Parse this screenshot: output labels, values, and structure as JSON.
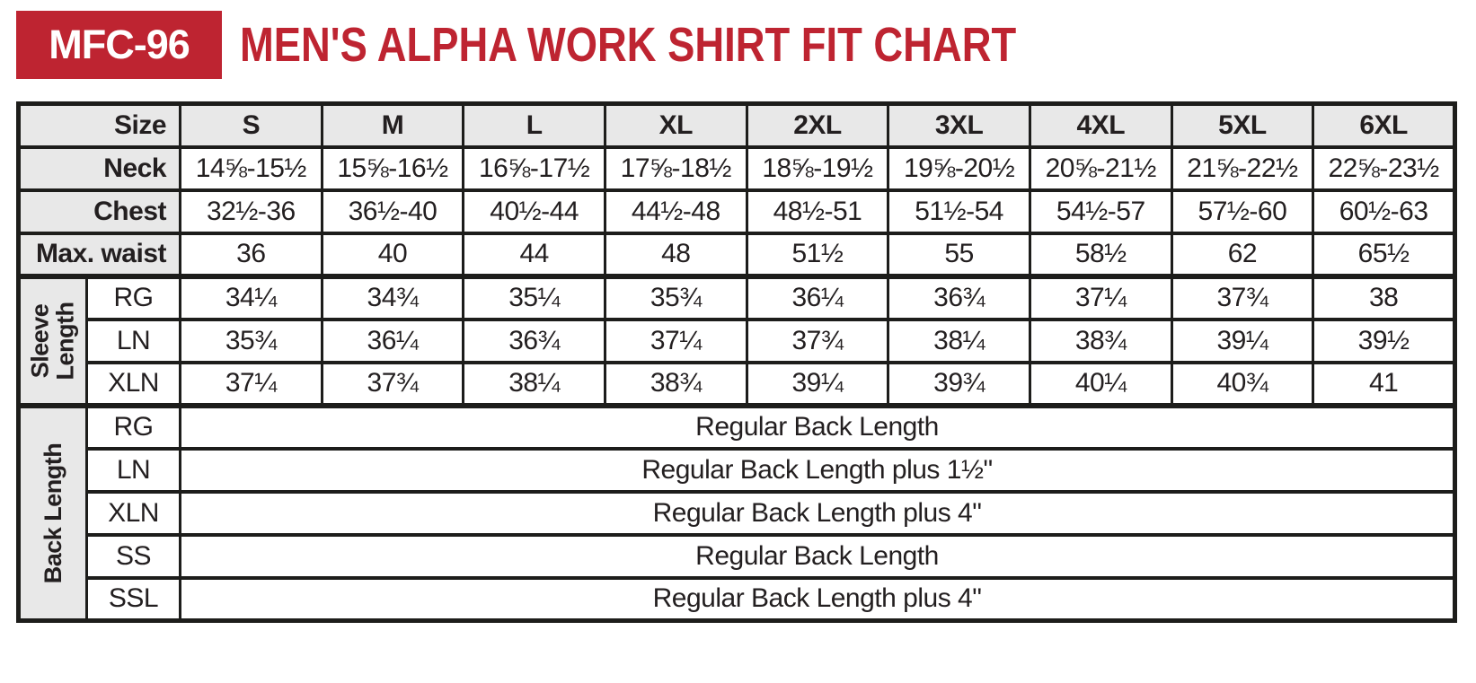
{
  "header": {
    "badge_label": "MFC-96",
    "title": "MEN'S ALPHA WORK SHIRT FIT CHART"
  },
  "colors": {
    "accent_red": "#be2431",
    "header_gray": "#e8e8e8",
    "border_black": "#1d1d1b",
    "text_black": "#231f20"
  },
  "table": {
    "size_label": "Size",
    "sizes": [
      "S",
      "M",
      "L",
      "XL",
      "2XL",
      "3XL",
      "4XL",
      "5XL",
      "6XL"
    ],
    "measurement_rows": [
      {
        "label": "Neck",
        "values": [
          "14⅝-15½",
          "15⅝-16½",
          "16⅝-17½",
          "17⅝-18½",
          "18⅝-19½",
          "19⅝-20½",
          "20⅝-21½",
          "21⅝-22½",
          "22⅝-23½"
        ]
      },
      {
        "label": "Chest",
        "values": [
          "32½-36",
          "36½-40",
          "40½-44",
          "44½-48",
          "48½-51",
          "51½-54",
          "54½-57",
          "57½-60",
          "60½-63"
        ]
      },
      {
        "label": "Max. waist",
        "values": [
          "36",
          "40",
          "44",
          "48",
          "51½",
          "55",
          "58½",
          "62",
          "65½"
        ]
      }
    ],
    "sleeve_length": {
      "label": "Sleeve Length",
      "fits": [
        {
          "code": "RG",
          "values": [
            "34¼",
            "34¾",
            "35¼",
            "35¾",
            "36¼",
            "36¾",
            "37¼",
            "37¾",
            "38"
          ]
        },
        {
          "code": "LN",
          "values": [
            "35¾",
            "36¼",
            "36¾",
            "37¼",
            "37¾",
            "38¼",
            "38¾",
            "39¼",
            "39½"
          ]
        },
        {
          "code": "XLN",
          "values": [
            "37¼",
            "37¾",
            "38¼",
            "38¾",
            "39¼",
            "39¾",
            "40¼",
            "40¾",
            "41"
          ]
        }
      ]
    },
    "back_length": {
      "label": "Back Length",
      "fits": [
        {
          "code": "RG",
          "value": "Regular Back Length"
        },
        {
          "code": "LN",
          "value": "Regular Back Length plus 1½\""
        },
        {
          "code": "XLN",
          "value": "Regular Back Length plus 4\""
        },
        {
          "code": "SS",
          "value": "Regular Back Length"
        },
        {
          "code": "SSL",
          "value": "Regular Back Length plus 4\""
        }
      ]
    }
  }
}
